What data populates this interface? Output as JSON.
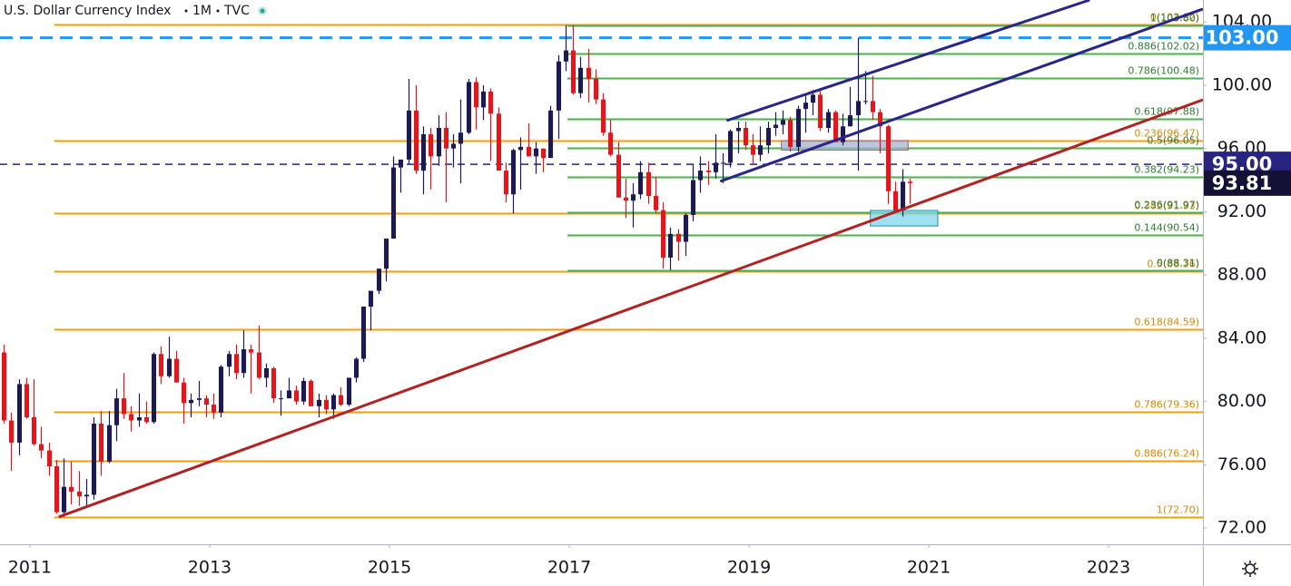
{
  "chart_data": {
    "type": "candlestick",
    "title": "U.S. Dollar Currency Index",
    "interval": "1M",
    "source": "TVC",
    "up_color": "#1c1a52",
    "down_color": "#e4151b",
    "xlim": [
      2010.667,
      2024.05
    ],
    "xticks": [
      2011,
      2013,
      2015,
      2017,
      2019,
      2021,
      2023
    ],
    "ylim": [
      70.97,
      105.39
    ],
    "yticks": [
      {
        "value": 72,
        "label": "72.00"
      },
      {
        "value": 76,
        "label": "76.00"
      },
      {
        "value": 80,
        "label": "80.00"
      },
      {
        "value": 84,
        "label": "84.00"
      },
      {
        "value": 88,
        "label": "88.00"
      },
      {
        "value": 92,
        "label": "92.00"
      },
      {
        "value": 96,
        "label": "96.00"
      },
      {
        "value": 100,
        "label": "100.00"
      },
      {
        "value": 104,
        "label": "104.00"
      }
    ],
    "x": [
      2010.667,
      2010.75,
      2010.833,
      2010.917,
      2011,
      2011.083,
      2011.167,
      2011.25,
      2011.333,
      2011.417,
      2011.5,
      2011.583,
      2011.667,
      2011.75,
      2011.833,
      2011.917,
      2012,
      2012.083,
      2012.167,
      2012.25,
      2012.333,
      2012.417,
      2012.5,
      2012.583,
      2012.667,
      2012.75,
      2012.833,
      2012.917,
      2013,
      2013.083,
      2013.167,
      2013.25,
      2013.333,
      2013.417,
      2013.5,
      2013.583,
      2013.667,
      2013.75,
      2013.833,
      2013.917,
      2014,
      2014.083,
      2014.167,
      2014.25,
      2014.333,
      2014.417,
      2014.5,
      2014.583,
      2014.667,
      2014.75,
      2014.833,
      2014.917,
      2015,
      2015.083,
      2015.167,
      2015.25,
      2015.333,
      2015.417,
      2015.5,
      2015.583,
      2015.667,
      2015.75,
      2015.833,
      2015.917,
      2016,
      2016.083,
      2016.167,
      2016.25,
      2016.333,
      2016.417,
      2016.5,
      2016.583,
      2016.667,
      2016.75,
      2016.833,
      2016.917,
      2017,
      2017.083,
      2017.167,
      2017.25,
      2017.333,
      2017.417,
      2017.5,
      2017.583,
      2017.667,
      2017.75,
      2017.833,
      2017.917,
      2018,
      2018.083,
      2018.167,
      2018.25,
      2018.333,
      2018.417,
      2018.5,
      2018.583,
      2018.667,
      2018.75,
      2018.833,
      2018.917,
      2019,
      2019.083,
      2019.167,
      2019.25,
      2019.333,
      2019.417,
      2019.5,
      2019.583,
      2019.667,
      2019.75,
      2019.833,
      2019.917,
      2020,
      2020.083,
      2020.167,
      2020.25,
      2020.333,
      2020.417,
      2020.5,
      2020.583,
      2020.667,
      2020.75
    ],
    "open": [
      83.1,
      78.8,
      77.4,
      81.1,
      79.0,
      77.3,
      76.9,
      75.9,
      73.0,
      74.6,
      74.3,
      74.0,
      74.1,
      78.6,
      76.2,
      78.5,
      80.2,
      79.2,
      78.8,
      79.0,
      78.7,
      83.0,
      81.6,
      82.7,
      81.2,
      79.9,
      80.1,
      80.2,
      79.8,
      79.3,
      82.2,
      83.0,
      81.8,
      83.3,
      83.1,
      81.5,
      82.1,
      80.2,
      80.2,
      80.7,
      80.0,
      81.3,
      79.7,
      80.1,
      79.5,
      80.4,
      79.8,
      81.5,
      82.7,
      86.0,
      87.0,
      88.4,
      90.3,
      94.8,
      95.3,
      98.4,
      94.6,
      96.9,
      95.5,
      97.3,
      96.0,
      96.3,
      97.0,
      100.2,
      98.6,
      99.6,
      98.2,
      94.6,
      93.1,
      95.9,
      96.1,
      95.5,
      96.0,
      95.4,
      98.4,
      101.5,
      102.2,
      99.5,
      101.1,
      100.4,
      99.1,
      97.0,
      95.6,
      92.9,
      92.7,
      93.1,
      94.5,
      93.0,
      92.1,
      89.1,
      90.6,
      90.1,
      91.8,
      94.0,
      94.6,
      94.5,
      95.1,
      95.1,
      97.1,
      97.3,
      96.2,
      95.6,
      96.2,
      97.3,
      97.5,
      97.8,
      96.1,
      98.5,
      98.9,
      99.4,
      97.3,
      98.3,
      96.4,
      97.4,
      98.1,
      99.0,
      99.0,
      98.3,
      97.4,
      93.3,
      92.1,
      93.9
    ],
    "high": [
      83.6,
      79.3,
      81.4,
      81.5,
      81.4,
      78.4,
      77.4,
      76.3,
      76.4,
      76.2,
      75.6,
      75.1,
      79.0,
      79.4,
      79.4,
      80.8,
      81.8,
      79.7,
      80.5,
      80.0,
      83.1,
      83.5,
      84.1,
      83.2,
      81.5,
      80.5,
      81.3,
      80.4,
      80.5,
      82.3,
      83.2,
      83.6,
      84.5,
      83.6,
      84.8,
      82.4,
      82.2,
      80.7,
      81.5,
      81.0,
      81.5,
      81.4,
      80.5,
      80.4,
      80.5,
      80.9,
      81.5,
      82.8,
      86.0,
      87.0,
      88.4,
      90.3,
      95.5,
      95.3,
      100.4,
      100.0,
      97.4,
      97.3,
      98.1,
      98.3,
      96.9,
      99.1,
      100.4,
      100.5,
      100.0,
      99.8,
      98.6,
      95.1,
      96.0,
      96.7,
      97.6,
      96.4,
      96.0,
      98.7,
      101.9,
      103.8,
      103.8,
      101.8,
      102.3,
      101.0,
      99.5,
      97.8,
      96.4,
      94.1,
      93.8,
      95.2,
      95.1,
      94.2,
      92.6,
      91.0,
      90.9,
      91.9,
      95.0,
      95.5,
      95.2,
      96.9,
      95.7,
      97.2,
      97.7,
      97.7,
      96.9,
      97.4,
      97.7,
      98.3,
      98.4,
      98.0,
      98.7,
      99.4,
      99.7,
      99.7,
      98.5,
      98.4,
      98.2,
      99.9,
      103.0,
      100.9,
      100.6,
      98.5,
      97.5,
      93.9,
      94.7,
      94.1
    ],
    "low": [
      78.6,
      75.6,
      76.6,
      78.9,
      77.2,
      76.4,
      75.3,
      72.9,
      72.7,
      73.5,
      73.4,
      73.4,
      73.8,
      75.3,
      76.1,
      77.5,
      78.9,
      78.1,
      78.4,
      78.6,
      78.6,
      81.1,
      81.5,
      81.2,
      78.6,
      79.0,
      79.7,
      79.0,
      78.9,
      79.0,
      81.6,
      81.4,
      81.5,
      80.5,
      81.4,
      80.9,
      79.9,
      79.1,
      80.2,
      79.8,
      79.8,
      79.7,
      79.0,
      79.2,
      78.9,
      79.7,
      79.7,
      81.2,
      82.5,
      84.5,
      86.8,
      87.6,
      90.3,
      93.2,
      95.0,
      94.4,
      93.1,
      93.4,
      94.9,
      92.6,
      94.8,
      93.8,
      96.9,
      97.2,
      97.8,
      95.2,
      94.6,
      92.6,
      91.9,
      93.4,
      95.5,
      94.4,
      94.5,
      95.4,
      96.6,
      100.9,
      99.4,
      99.2,
      98.9,
      98.8,
      96.8,
      95.5,
      92.9,
      91.6,
      91.0,
      92.8,
      92.5,
      91.9,
      88.4,
      88.3,
      88.9,
      89.2,
      91.4,
      93.2,
      93.7,
      94.1,
      93.8,
      94.8,
      95.7,
      95.9,
      95.0,
      95.2,
      95.7,
      96.8,
      96.9,
      95.8,
      95.8,
      97.0,
      98.1,
      97.1,
      97.0,
      96.4,
      96.2,
      97.4,
      94.6,
      98.8,
      97.8,
      95.7,
      92.5,
      92.1,
      91.7,
      92.5
    ],
    "close": [
      78.8,
      77.4,
      81.1,
      79.0,
      77.3,
      76.9,
      75.9,
      73.0,
      74.6,
      74.3,
      74.0,
      74.1,
      78.6,
      76.2,
      78.5,
      80.2,
      79.2,
      78.8,
      79.0,
      78.7,
      83.0,
      81.6,
      82.7,
      81.2,
      79.9,
      80.1,
      80.2,
      79.8,
      79.3,
      82.2,
      83.0,
      81.8,
      83.3,
      83.1,
      81.5,
      82.1,
      80.2,
      80.2,
      80.7,
      80.0,
      81.3,
      79.7,
      80.1,
      79.5,
      80.4,
      79.8,
      81.5,
      82.7,
      86.0,
      87.0,
      88.4,
      90.3,
      94.8,
      95.3,
      98.4,
      94.6,
      96.9,
      95.5,
      97.3,
      96.0,
      96.3,
      97.0,
      100.2,
      98.6,
      99.6,
      98.2,
      94.6,
      93.1,
      95.9,
      96.1,
      95.5,
      96.0,
      95.4,
      98.4,
      101.5,
      102.2,
      99.5,
      101.1,
      100.4,
      99.1,
      97.0,
      95.6,
      92.9,
      92.7,
      93.1,
      94.5,
      93.0,
      92.1,
      89.1,
      90.6,
      90.1,
      91.8,
      94.0,
      94.6,
      94.5,
      95.1,
      95.1,
      97.1,
      97.3,
      96.2,
      95.6,
      96.2,
      97.3,
      97.5,
      97.8,
      96.1,
      98.5,
      98.9,
      99.4,
      97.3,
      98.3,
      96.4,
      97.4,
      98.1,
      99.0,
      99.0,
      98.3,
      97.4,
      93.3,
      92.1,
      93.9,
      93.81
    ],
    "fib_sets": [
      {
        "color": "#f59c10",
        "start": 2011.27,
        "levels": [
          {
            "label": "0(103.82)",
            "value": 103.82
          },
          {
            "label": "0.236(96.47)",
            "value": 96.47
          },
          {
            "label": "0.382(91.93)",
            "value": 91.93
          },
          {
            "label": "0.5(88.26)",
            "value": 88.26
          },
          {
            "label": "0.618(84.59)",
            "value": 84.59
          },
          {
            "label": "0.786(79.36)",
            "value": 79.36
          },
          {
            "label": "0.886(76.24)",
            "value": 76.24
          },
          {
            "label": "1(72.70)",
            "value": 72.7
          }
        ]
      },
      {
        "color": "#4caf50",
        "start": 2016.98,
        "levels": [
          {
            "label": "0(88.31)",
            "value": 88.31
          },
          {
            "label": "0.144(90.54)",
            "value": 90.54
          },
          {
            "label": "0.236(91.97)",
            "value": 91.97
          },
          {
            "label": "0.382(94.23)",
            "value": 94.23
          },
          {
            "label": "0.5(96.05)",
            "value": 96.05
          },
          {
            "label": "0.618(97.88)",
            "value": 97.88
          },
          {
            "label": "0.786(100.48)",
            "value": 100.48
          },
          {
            "label": "0.886(102.02)",
            "value": 102.02
          },
          {
            "label": "1(103.80)",
            "value": 103.8
          }
        ]
      }
    ],
    "trendlines": [
      {
        "color": "#b22222",
        "x1": 2011.32,
        "y1": 72.7,
        "x2": 2024.05,
        "y2": 99.08
      },
      {
        "color": "#2a2688",
        "x1": 2018.75,
        "y1": 97.76,
        "x2": 2022.79,
        "y2": 105.39
      },
      {
        "color": "#2a2688",
        "x1": 2018.68,
        "y1": 93.92,
        "x2": 2024.05,
        "y2": 104.82
      }
    ],
    "zones": [
      {
        "color": "#9fb4d6",
        "border": "#b45a5a",
        "x1": 2019.36,
        "x2": 2020.77,
        "y1": 96.5,
        "y2": 95.9
      },
      {
        "color": "#7fd8ea",
        "border": "#2a8cb4",
        "x1": 2020.35,
        "x2": 2021.1,
        "y1": 92.08,
        "y2": 91.1
      }
    ],
    "price_lines": [
      {
        "value": 103,
        "label": "103.00",
        "color": "#2196f3"
      },
      {
        "value": 95,
        "label": "95.00",
        "color": "#272482"
      }
    ],
    "last_price": {
      "value": 93.81,
      "label": "93.81",
      "color": "#131236"
    }
  }
}
